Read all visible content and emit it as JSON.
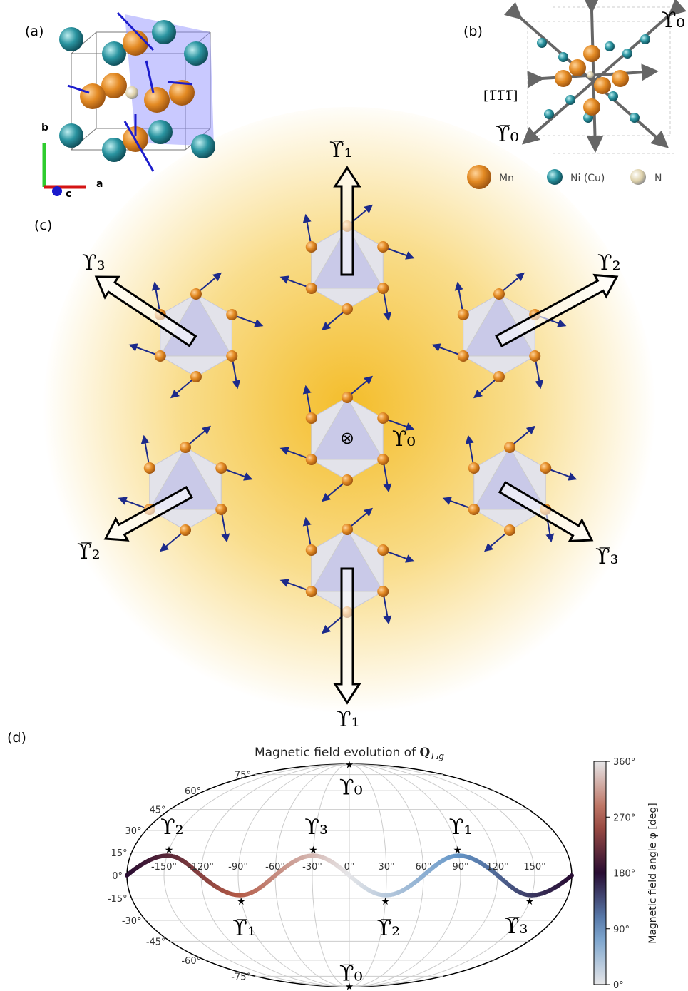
{
  "panel_a": {
    "label": "(a)",
    "axes": [
      "b",
      "a",
      "c"
    ]
  },
  "panel_b": {
    "label": "(b)",
    "upsilon_0": "ϒ₀",
    "direction": "[1̅1̅1̅]",
    "upsilon_0_bar": "ϒ̅₀",
    "legend": [
      "Mn",
      "Ni (Cu)",
      "N"
    ]
  },
  "panel_c": {
    "label": "(c)",
    "labels": [
      "ϒ̅₁",
      "ϒ₃",
      "ϒ₂",
      "ϒ₀",
      "ϒ̅₂",
      "ϒ̅₃",
      "ϒ₁"
    ]
  },
  "panel_d": {
    "label": "(d)",
    "title": "Magnetic field evolution of ",
    "title_symbol": "Q",
    "title_subscript": "T₁g",
    "longitude_labels": [
      "-150°",
      "-120°",
      "-90°",
      "-60°",
      "-30°",
      "0°",
      "30°",
      "60°",
      "90°",
      "120°",
      "150°"
    ],
    "latitude_labels": [
      "75°",
      "60°",
      "45°",
      "30°",
      "15°",
      "0°",
      "-15°",
      "-30°",
      "-45°",
      "-60°",
      "-75°"
    ],
    "markers": [
      "ϒ₂",
      "ϒ₃",
      "ϒ₁",
      "ϒ̅₁",
      "ϒ̅₂",
      "ϒ̅₃",
      "ϒ₀",
      "ϒ̅₀"
    ],
    "colorbar": {
      "label": "Magnetic field angle φ [deg]",
      "ticks": [
        "0°",
        "90°",
        "180°",
        "270°",
        "360°"
      ]
    }
  }
}
